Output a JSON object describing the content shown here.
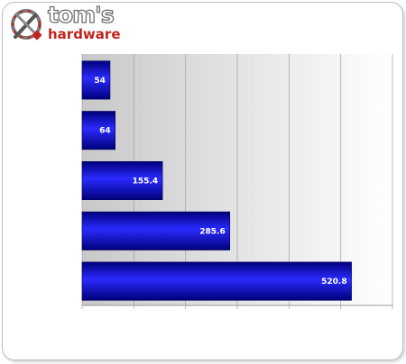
{
  "logo": {
    "line1": "tom's",
    "line2": "hardware"
  },
  "colors": {
    "bar_light": "#2a2aff",
    "bar_dark": "#00007a",
    "brand_red": "#c0241f",
    "plot_bg_light": "#ffffff",
    "plot_bg_dark": "#c8c8c8"
  },
  "chart_data": {
    "type": "bar",
    "orientation": "horizontal",
    "title": "",
    "xlabel": "",
    "ylabel": "",
    "categories": [
      "",
      "",
      "",
      "",
      ""
    ],
    "values": [
      54,
      64,
      155.4,
      285.6,
      520.8
    ],
    "value_labels": [
      "54",
      "64",
      "155.4",
      "285.6",
      "520.8"
    ],
    "xlim": [
      0,
      600
    ],
    "grid": true,
    "legend": "none"
  }
}
